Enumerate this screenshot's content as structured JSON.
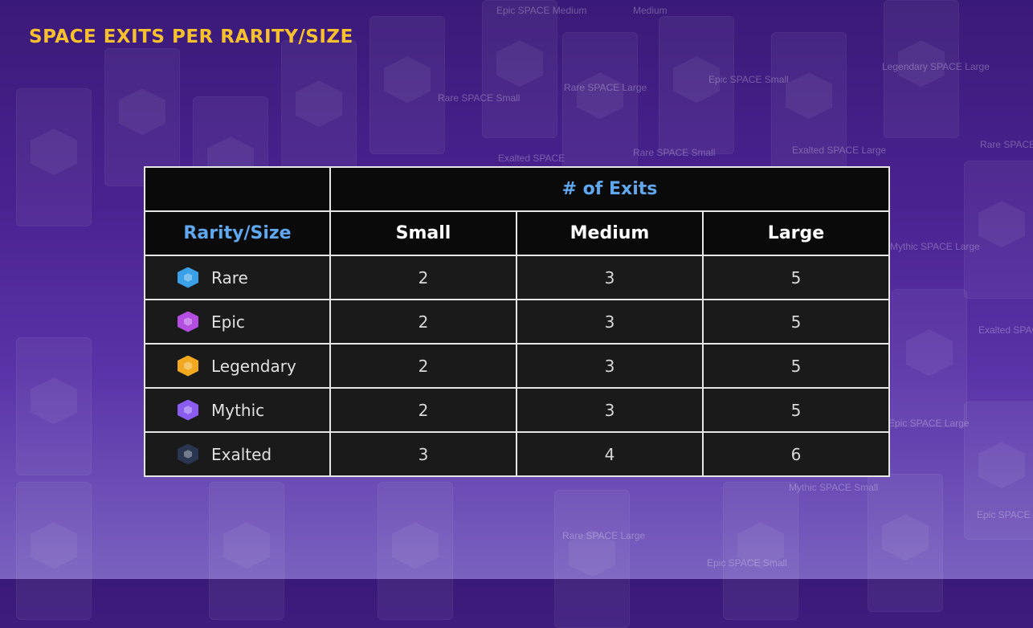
{
  "page": {
    "title": "SPACE EXITS PER RARITY/SIZE"
  },
  "background_labels": [
    "Epic SPACE Medium",
    "Medium",
    "Legendary SPACE Large",
    "Epic SPACE Small",
    "Rare SPACE Large",
    "Rare SPACE Small",
    "Exalted SPACE Large",
    "Rare SPACE",
    "Mythic SPACE Large",
    "Exalted SPACE Medium",
    "Mythic SPACE Small",
    "Epic SPACE Medium",
    "Epic SPACE Small",
    "Rare SPACE Large",
    "Epic SPACE Large",
    "Exalted SPACE",
    "Rare SPACE Small"
  ],
  "table": {
    "group_header": "# of Exits",
    "row_header": "Rarity/Size",
    "columns": [
      "Small",
      "Medium",
      "Large"
    ],
    "rows": [
      {
        "name": "Rare",
        "icon": "rare-gem-icon",
        "color": "#3aa0e8",
        "values": [
          "2",
          "3",
          "5"
        ]
      },
      {
        "name": "Epic",
        "icon": "epic-gem-icon",
        "color": "#b44ee0",
        "values": [
          "2",
          "3",
          "5"
        ]
      },
      {
        "name": "Legendary",
        "icon": "legendary-gem-icon",
        "color": "#f2a81f",
        "values": [
          "2",
          "3",
          "5"
        ]
      },
      {
        "name": "Mythic",
        "icon": "mythic-gem-icon",
        "color": "#8a5cf0",
        "values": [
          "2",
          "3",
          "5"
        ]
      },
      {
        "name": "Exalted",
        "icon": "exalted-gem-icon",
        "color": "#2a3550",
        "values": [
          "3",
          "4",
          "6"
        ]
      }
    ]
  }
}
